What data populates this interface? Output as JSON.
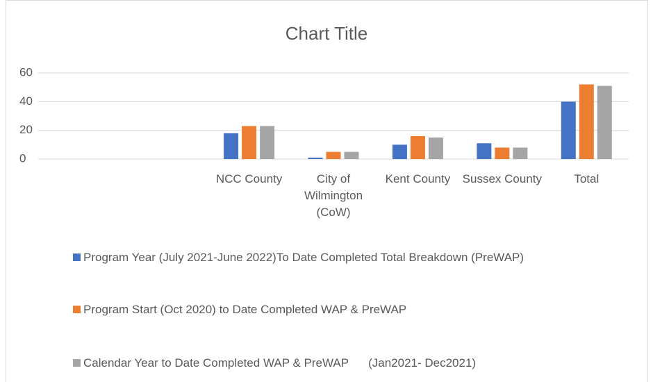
{
  "chart_data": {
    "type": "bar",
    "title": "Chart Title",
    "categories": [
      null,
      null,
      "NCC County",
      "City of Wilmington (CoW)",
      "Kent County",
      "Sussex County",
      "Total"
    ],
    "series": [
      {
        "name": "Program Year (July 2021-June 2022)To Date Completed Total Breakdown (PreWAP)",
        "color": "#4472c4",
        "values": [
          null,
          null,
          18,
          1,
          10,
          11,
          40
        ]
      },
      {
        "name": "Program Start (Oct 2020) to Date Completed WAP & PreWAP",
        "color": "#ed7d31",
        "values": [
          null,
          null,
          23,
          5,
          16,
          8,
          52
        ]
      },
      {
        "name": "Calendar Year to Date Completed WAP & PreWAP      (Jan2021- Dec2021)",
        "color": "#a5a5a5",
        "values": [
          null,
          null,
          23,
          5,
          15,
          8,
          51
        ]
      }
    ],
    "ylim": [
      0,
      60
    ],
    "yticks": [
      0,
      20,
      40,
      60
    ],
    "grid": true,
    "legend": "bottom"
  }
}
